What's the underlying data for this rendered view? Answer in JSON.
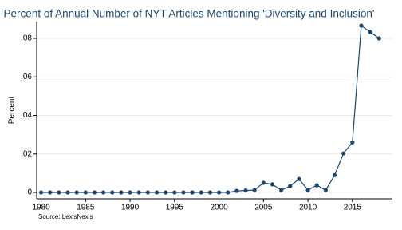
{
  "chart_data": {
    "type": "line",
    "title": "Percent of Annual Number of NYT Articles Mentioning 'Diversity and Inclusion'",
    "y_label": "Percent",
    "note": "Source: LexisNexis",
    "x": [
      1980,
      1981,
      1982,
      1983,
      1984,
      1985,
      1986,
      1987,
      1988,
      1989,
      1990,
      1991,
      1992,
      1993,
      1994,
      1995,
      1996,
      1997,
      1998,
      1999,
      2000,
      2001,
      2002,
      2003,
      2004,
      2005,
      2006,
      2007,
      2008,
      2009,
      2010,
      2011,
      2012,
      2013,
      2014,
      2015,
      2016,
      2017,
      2018
    ],
    "values": [
      0,
      0,
      0,
      0,
      0,
      0,
      0,
      0,
      0,
      0,
      0,
      0,
      0,
      0,
      0,
      0,
      0,
      0,
      0,
      0,
      0,
      0,
      0.0008,
      0.001,
      0.0012,
      0.005,
      0.0042,
      0.0012,
      0.0033,
      0.007,
      0.0012,
      0.0037,
      0.0012,
      0.009,
      0.0203,
      0.026,
      0.0866,
      0.0833,
      0.08
    ],
    "color": "#1a476f",
    "xlim": [
      1979.5,
      2019.5
    ],
    "xticks": [
      1980,
      1985,
      1990,
      1995,
      2000,
      2005,
      2010,
      2015
    ],
    "ylim": [
      -0.0033,
      0.0887
    ],
    "yticks": [
      0,
      {
        "value": 0.02,
        "label": ".02"
      },
      {
        "value": 0.04,
        "label": ".04"
      },
      {
        "value": 0.06,
        "label": ".06"
      },
      {
        "value": 0.08,
        "label": ".08"
      }
    ],
    "grid": true
  }
}
